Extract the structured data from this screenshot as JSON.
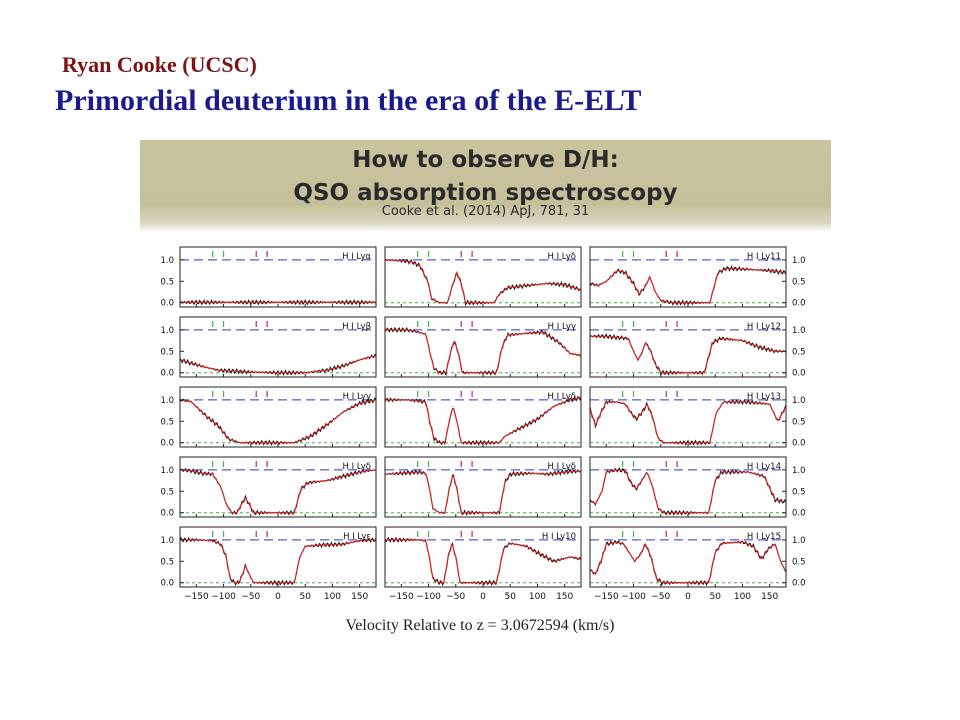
{
  "slide": {
    "author": "Ryan Cooke (UCSC)",
    "title": "Primordial deuterium in the era of the E-ELT",
    "banner": {
      "line1": "How to observe D/H:",
      "line2": "QSO absorption spectroscopy",
      "citation": "Cooke et al. (2014) ApJ, 781, 31"
    },
    "xlabel": "Velocity Relative to z = 3.0672594 (km/s)"
  },
  "colors": {
    "data": "#111111",
    "model": "#e02020",
    "continuum": "#2b35c8",
    "zero": "#3cb44b",
    "h_ticks": "#3cb44b",
    "d_ticks": "#c02080"
  },
  "chart_data": {
    "type": "line",
    "xlim": [
      -180,
      180
    ],
    "ylim": [
      -0.1,
      1.3
    ],
    "x_ticks": [
      -150,
      -100,
      -50,
      0,
      50,
      100,
      150
    ],
    "x_tick_labels": [
      "−150",
      "−100",
      "−50",
      "0",
      "50",
      "100",
      "150"
    ],
    "y_ticks": [
      0.0,
      0.5,
      1.0
    ],
    "y_tick_labels": [
      "0.0",
      "0.5",
      "1.0"
    ],
    "continuum_level": 1.0,
    "h_ticks_x": [
      -120,
      -100
    ],
    "d_ticks_x": [
      -40,
      -20
    ],
    "layout": "5 rows x 3 columns, panels ordered down each column",
    "panels": [
      {
        "label": "H I Lyα",
        "profile": [
          [
            -180,
            0.01
          ],
          [
            180,
            0.01
          ]
        ]
      },
      {
        "label": "H I Lyβ",
        "profile": [
          [
            -180,
            0.3
          ],
          [
            -140,
            0.15
          ],
          [
            -110,
            0.06
          ],
          [
            -60,
            0.02
          ],
          [
            0,
            0.0
          ],
          [
            50,
            0.0
          ],
          [
            90,
            0.06
          ],
          [
            120,
            0.16
          ],
          [
            150,
            0.3
          ],
          [
            180,
            0.4
          ]
        ]
      },
      {
        "label": "H I Lyγ",
        "profile": [
          [
            -180,
            1.0
          ],
          [
            -160,
            0.96
          ],
          [
            -145,
            0.78
          ],
          [
            -130,
            0.6
          ],
          [
            -110,
            0.4
          ],
          [
            -90,
            0.08
          ],
          [
            -70,
            0.0
          ],
          [
            30,
            0.0
          ],
          [
            60,
            0.15
          ],
          [
            90,
            0.42
          ],
          [
            120,
            0.72
          ],
          [
            150,
            0.92
          ],
          [
            180,
            1.0
          ]
        ]
      },
      {
        "label": "H I Lyδ",
        "profile": [
          [
            -180,
            1.0
          ],
          [
            -160,
            0.98
          ],
          [
            -140,
            0.92
          ],
          [
            -120,
            0.9
          ],
          [
            -105,
            0.6
          ],
          [
            -95,
            0.2
          ],
          [
            -85,
            0.0
          ],
          [
            -75,
            0.0
          ],
          [
            -68,
            0.18
          ],
          [
            -60,
            0.35
          ],
          [
            -52,
            0.18
          ],
          [
            -45,
            0.0
          ],
          [
            30,
            0.0
          ],
          [
            42,
            0.55
          ],
          [
            55,
            0.7
          ],
          [
            90,
            0.75
          ],
          [
            120,
            0.85
          ],
          [
            150,
            0.95
          ],
          [
            180,
            1.0
          ]
        ]
      },
      {
        "label": "H I Lyε",
        "profile": [
          [
            -180,
            1.0
          ],
          [
            -150,
            1.0
          ],
          [
            -120,
            0.98
          ],
          [
            -105,
            0.9
          ],
          [
            -95,
            0.6
          ],
          [
            -88,
            0.1
          ],
          [
            -80,
            0.0
          ],
          [
            -72,
            0.0
          ],
          [
            -65,
            0.2
          ],
          [
            -60,
            0.4
          ],
          [
            -53,
            0.2
          ],
          [
            -45,
            0.0
          ],
          [
            30,
            0.0
          ],
          [
            40,
            0.6
          ],
          [
            50,
            0.85
          ],
          [
            80,
            0.88
          ],
          [
            120,
            0.9
          ],
          [
            150,
            0.98
          ],
          [
            180,
            1.0
          ]
        ]
      },
      {
        "label": "H I Lyδ",
        "profile": [
          [
            -180,
            1.0
          ],
          [
            -150,
            0.98
          ],
          [
            -130,
            0.95
          ],
          [
            -115,
            0.85
          ],
          [
            -100,
            0.45
          ],
          [
            -95,
            0.1
          ],
          [
            -80,
            0.0
          ],
          [
            -65,
            0.0
          ],
          [
            -55,
            0.45
          ],
          [
            -48,
            0.7
          ],
          [
            -40,
            0.45
          ],
          [
            -32,
            0.0
          ],
          [
            20,
            0.0
          ],
          [
            30,
            0.2
          ],
          [
            45,
            0.35
          ],
          [
            80,
            0.4
          ],
          [
            120,
            0.45
          ],
          [
            150,
            0.42
          ],
          [
            180,
            0.3
          ]
        ]
      },
      {
        "label": "H I Lyγ",
        "profile": [
          [
            -180,
            1.0
          ],
          [
            -140,
            1.0
          ],
          [
            -120,
            0.95
          ],
          [
            -105,
            0.9
          ],
          [
            -98,
            0.5
          ],
          [
            -90,
            0.1
          ],
          [
            -80,
            0.0
          ],
          [
            -68,
            0.0
          ],
          [
            -60,
            0.45
          ],
          [
            -53,
            0.75
          ],
          [
            -45,
            0.45
          ],
          [
            -38,
            0.0
          ],
          [
            25,
            0.0
          ],
          [
            35,
            0.6
          ],
          [
            45,
            0.88
          ],
          [
            80,
            0.92
          ],
          [
            110,
            0.95
          ],
          [
            140,
            0.7
          ],
          [
            160,
            0.45
          ],
          [
            180,
            0.4
          ]
        ]
      },
      {
        "label": "H I Lyδ",
        "profile": [
          [
            -180,
            1.0
          ],
          [
            -140,
            1.0
          ],
          [
            -120,
            0.98
          ],
          [
            -105,
            0.95
          ],
          [
            -98,
            0.5
          ],
          [
            -90,
            0.1
          ],
          [
            -80,
            0.0
          ],
          [
            -70,
            0.0
          ],
          [
            -62,
            0.5
          ],
          [
            -55,
            0.85
          ],
          [
            -48,
            0.5
          ],
          [
            -40,
            0.0
          ],
          [
            30,
            0.0
          ],
          [
            40,
            0.15
          ],
          [
            70,
            0.35
          ],
          [
            100,
            0.55
          ],
          [
            130,
            0.85
          ],
          [
            160,
            1.0
          ],
          [
            180,
            1.05
          ]
        ]
      },
      {
        "label": "H I Lyδ",
        "profile": [
          [
            -180,
            0.9
          ],
          [
            -150,
            0.92
          ],
          [
            -120,
            0.95
          ],
          [
            -105,
            0.92
          ],
          [
            -98,
            0.55
          ],
          [
            -92,
            0.1
          ],
          [
            -80,
            0.0
          ],
          [
            -70,
            0.0
          ],
          [
            -62,
            0.55
          ],
          [
            -55,
            0.9
          ],
          [
            -48,
            0.55
          ],
          [
            -40,
            0.0
          ],
          [
            30,
            0.0
          ],
          [
            40,
            0.7
          ],
          [
            50,
            0.9
          ],
          [
            90,
            0.92
          ],
          [
            120,
            0.9
          ],
          [
            150,
            0.95
          ],
          [
            180,
            0.97
          ]
        ]
      },
      {
        "label": "H I Ly10",
        "profile": [
          [
            -180,
            1.0
          ],
          [
            -150,
            1.0
          ],
          [
            -120,
            1.0
          ],
          [
            -105,
            0.98
          ],
          [
            -98,
            0.55
          ],
          [
            -92,
            0.1
          ],
          [
            -80,
            0.0
          ],
          [
            -72,
            0.0
          ],
          [
            -64,
            0.6
          ],
          [
            -57,
            0.92
          ],
          [
            -50,
            0.6
          ],
          [
            -42,
            0.0
          ],
          [
            25,
            0.0
          ],
          [
            38,
            0.8
          ],
          [
            50,
            0.92
          ],
          [
            80,
            0.85
          ],
          [
            100,
            0.7
          ],
          [
            130,
            0.5
          ],
          [
            160,
            0.6
          ],
          [
            180,
            0.55
          ]
        ]
      },
      {
        "label": "H I Ly11",
        "profile": [
          [
            -180,
            0.45
          ],
          [
            -165,
            0.4
          ],
          [
            -150,
            0.5
          ],
          [
            -130,
            0.75
          ],
          [
            -115,
            0.7
          ],
          [
            -100,
            0.45
          ],
          [
            -90,
            0.2
          ],
          [
            -80,
            0.35
          ],
          [
            -70,
            0.6
          ],
          [
            -60,
            0.25
          ],
          [
            -50,
            0.05
          ],
          [
            -30,
            0.0
          ],
          [
            40,
            0.0
          ],
          [
            55,
            0.7
          ],
          [
            70,
            0.8
          ],
          [
            110,
            0.78
          ],
          [
            150,
            0.75
          ],
          [
            180,
            0.7
          ]
        ]
      },
      {
        "label": "H I Ly12",
        "profile": [
          [
            -180,
            0.85
          ],
          [
            -150,
            0.85
          ],
          [
            -130,
            0.82
          ],
          [
            -110,
            0.8
          ],
          [
            -100,
            0.5
          ],
          [
            -92,
            0.3
          ],
          [
            -85,
            0.45
          ],
          [
            -78,
            0.7
          ],
          [
            -70,
            0.55
          ],
          [
            -60,
            0.2
          ],
          [
            -50,
            0.0
          ],
          [
            30,
            0.0
          ],
          [
            45,
            0.7
          ],
          [
            60,
            0.8
          ],
          [
            100,
            0.75
          ],
          [
            130,
            0.6
          ],
          [
            160,
            0.5
          ],
          [
            180,
            0.5
          ]
        ]
      },
      {
        "label": "H I Ly13",
        "profile": [
          [
            -180,
            0.8
          ],
          [
            -170,
            0.4
          ],
          [
            -160,
            0.7
          ],
          [
            -150,
            0.95
          ],
          [
            -130,
            0.95
          ],
          [
            -115,
            0.9
          ],
          [
            -105,
            0.7
          ],
          [
            -95,
            0.55
          ],
          [
            -85,
            0.7
          ],
          [
            -75,
            0.9
          ],
          [
            -65,
            0.6
          ],
          [
            -55,
            0.1
          ],
          [
            -45,
            0.0
          ],
          [
            40,
            0.0
          ],
          [
            52,
            0.7
          ],
          [
            65,
            0.95
          ],
          [
            110,
            0.95
          ],
          [
            150,
            0.9
          ],
          [
            165,
            0.5
          ],
          [
            180,
            0.85
          ]
        ]
      },
      {
        "label": "H I Ly14",
        "profile": [
          [
            -180,
            0.3
          ],
          [
            -170,
            0.2
          ],
          [
            -158,
            0.5
          ],
          [
            -150,
            0.95
          ],
          [
            -130,
            1.0
          ],
          [
            -115,
            0.98
          ],
          [
            -105,
            0.7
          ],
          [
            -95,
            0.55
          ],
          [
            -85,
            0.75
          ],
          [
            -75,
            0.95
          ],
          [
            -65,
            0.6
          ],
          [
            -55,
            0.1
          ],
          [
            -45,
            0.0
          ],
          [
            38,
            0.0
          ],
          [
            50,
            0.75
          ],
          [
            62,
            0.95
          ],
          [
            110,
            0.95
          ],
          [
            140,
            0.85
          ],
          [
            160,
            0.3
          ],
          [
            180,
            0.25
          ]
        ]
      },
      {
        "label": "H I Ly15",
        "profile": [
          [
            -180,
            0.3
          ],
          [
            -170,
            0.2
          ],
          [
            -160,
            0.5
          ],
          [
            -150,
            0.9
          ],
          [
            -130,
            0.95
          ],
          [
            -118,
            0.9
          ],
          [
            -108,
            0.7
          ],
          [
            -98,
            0.5
          ],
          [
            -88,
            0.65
          ],
          [
            -78,
            0.9
          ],
          [
            -68,
            0.6
          ],
          [
            -58,
            0.1
          ],
          [
            -48,
            0.0
          ],
          [
            38,
            0.0
          ],
          [
            50,
            0.7
          ],
          [
            62,
            0.92
          ],
          [
            100,
            0.95
          ],
          [
            120,
            0.85
          ],
          [
            135,
            0.55
          ],
          [
            148,
            0.8
          ],
          [
            160,
            0.9
          ],
          [
            170,
            0.5
          ],
          [
            180,
            0.25
          ]
        ]
      }
    ]
  }
}
